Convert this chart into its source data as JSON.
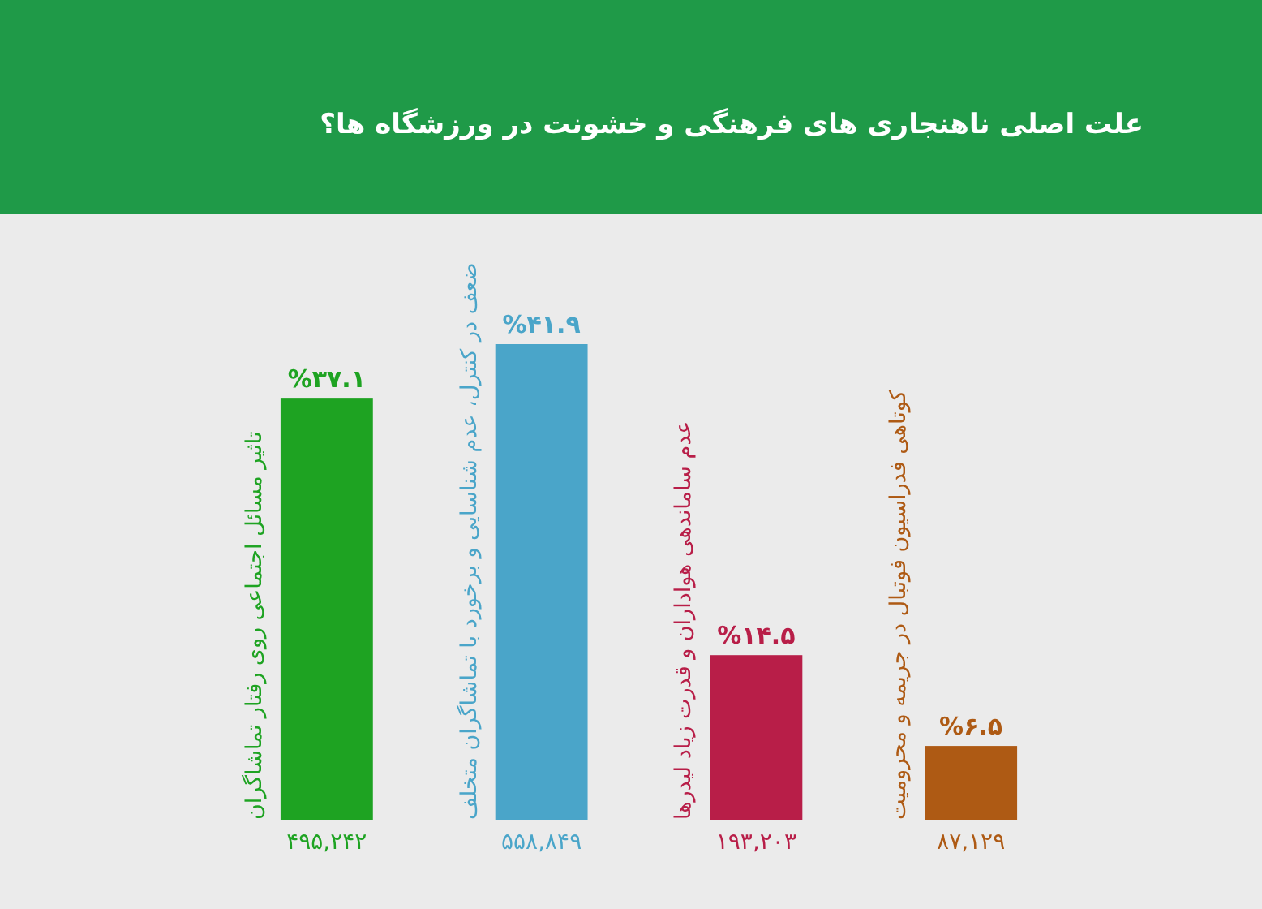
{
  "chart_data": {
    "type": "bar",
    "title": "علت اصلی ناهنجاری های فرهنگی و خشونت در ورزشگاه ها؟",
    "categories": [
      "تاثیر مسائل اجتماعی روی رفتار تماشاگران",
      "ضعف در کنترل، عدم شناسایی و برخورد با تماشاگران متخلف",
      "عدم ساماندهی هواداران و قدرت زیاد لیدرها",
      "کوتاهی فدراسیون فوتبال در جریمه و محرومیت"
    ],
    "values": [
      37.1,
      41.9,
      14.5,
      6.5
    ],
    "value_labels": [
      "%۳۷.۱",
      "%۴۱.۹",
      "%۱۴.۵",
      "%۶.۵"
    ],
    "colors": [
      "#1ea322",
      "#4aa5c9",
      "#b81e48",
      "#ae5a14"
    ],
    "annotations": [
      "۴۹۵,۲۴۲",
      "۵۵۸,۸۴۹",
      "۱۹۳,۲۰۳",
      "۸۷,۱۲۹"
    ]
  }
}
